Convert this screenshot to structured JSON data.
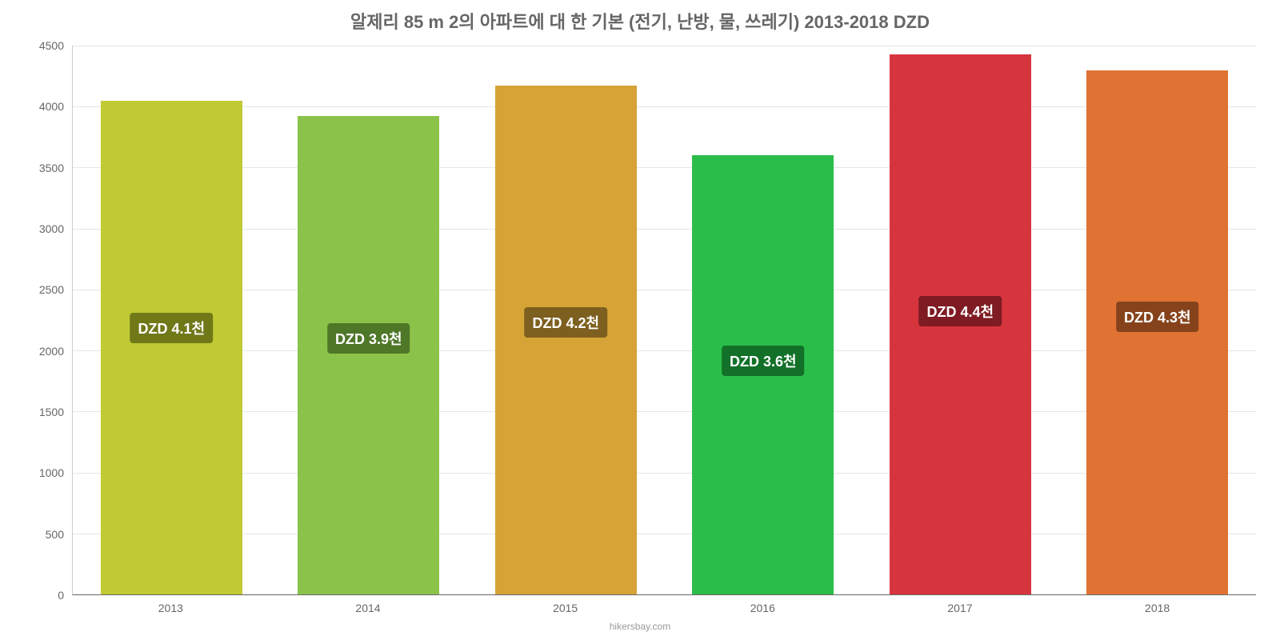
{
  "chart": {
    "type": "bar",
    "title": "알제리 85 m 2의 아파트에 대 한 기본 (전기, 난방, 물, 쓰레기) 2013-2018 DZD",
    "title_fontsize": 22,
    "title_color": "#666666",
    "background_color": "#ffffff",
    "grid_color": "#e6e6e6",
    "axis_color": "#666666",
    "ylim": [
      0,
      4500
    ],
    "ytick_step": 500,
    "y_ticks": [
      "0",
      "500",
      "1000",
      "1500",
      "2000",
      "2500",
      "3000",
      "3500",
      "4000",
      "4500"
    ],
    "x_labels": [
      "2013",
      "2014",
      "2015",
      "2016",
      "2017",
      "2018"
    ],
    "bars": [
      {
        "year": "2013",
        "value": 4050,
        "color": "#c0ca33",
        "label": "DZD 4.1천",
        "label_bg": "#707818",
        "label_top_pct": 48
      },
      {
        "year": "2014",
        "value": 3920,
        "color": "#8bc34a",
        "label": "DZD 3.9천",
        "label_bg": "#4e7728",
        "label_top_pct": 46
      },
      {
        "year": "2015",
        "value": 4170,
        "color": "#d6a336",
        "label": "DZD 4.2천",
        "label_bg": "#7d5f1f",
        "label_top_pct": 49
      },
      {
        "year": "2016",
        "value": 3600,
        "color": "#2bbd49",
        "label": "DZD 3.6천",
        "label_bg": "#127028",
        "label_top_pct": 42
      },
      {
        "year": "2017",
        "value": 4430,
        "color": "#d6353e",
        "label": "DZD 4.4천",
        "label_bg": "#7f1b22",
        "label_top_pct": 51
      },
      {
        "year": "2018",
        "value": 4300,
        "color": "#e07233",
        "label": "DZD 4.3천",
        "label_bg": "#86431b",
        "label_top_pct": 50
      }
    ],
    "bar_width_pct": 12,
    "tick_fontsize": 14,
    "label_fontsize": 18,
    "footer": "hikersbay.com",
    "footer_color": "#999999"
  }
}
